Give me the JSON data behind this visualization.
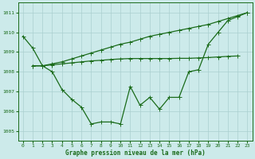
{
  "xlabel": "Graphe pression niveau de la mer (hPa)",
  "bg_color": "#cceaea",
  "grid_color": "#aacfcf",
  "line_color": "#1a6b1a",
  "x": [
    0,
    1,
    2,
    3,
    4,
    5,
    6,
    7,
    8,
    9,
    10,
    11,
    12,
    13,
    14,
    15,
    16,
    17,
    18,
    19,
    20,
    21,
    22,
    23
  ],
  "ylim": [
    1004.5,
    1011.5
  ],
  "yticks": [
    1005,
    1006,
    1007,
    1008,
    1009,
    1010,
    1011
  ],
  "series1": [
    1009.8,
    1009.2,
    1008.3,
    1008.0,
    1007.1,
    1006.6,
    1006.2,
    1005.35,
    1005.45,
    1005.45,
    1005.35,
    1007.25,
    1006.3,
    1006.7,
    1006.1,
    1006.7,
    1006.7,
    1008.0,
    1008.1,
    1009.4,
    1010.0,
    1010.6,
    1010.8,
    1011.0
  ],
  "series2_x": [
    1,
    2,
    3,
    4,
    5,
    6,
    7,
    8,
    9,
    10,
    11,
    12,
    13,
    14,
    15,
    16,
    17,
    18,
    19,
    20,
    21,
    22,
    23
  ],
  "series2_y": [
    1008.3,
    1008.3,
    1008.4,
    1008.5,
    1008.65,
    1008.8,
    1008.95,
    1009.1,
    1009.25,
    1009.4,
    1009.5,
    1009.65,
    1009.8,
    1009.9,
    1010.0,
    1010.1,
    1010.2,
    1010.3,
    1010.4,
    1010.55,
    1010.7,
    1010.85,
    1011.0
  ],
  "series3_x": [
    1,
    2,
    3,
    4,
    5,
    6,
    7,
    8,
    9,
    10,
    11,
    12,
    13,
    14,
    15,
    16,
    17,
    18,
    19,
    20,
    21,
    22
  ],
  "series3_y": [
    1008.3,
    1008.3,
    1008.35,
    1008.4,
    1008.45,
    1008.5,
    1008.55,
    1008.58,
    1008.62,
    1008.65,
    1008.67,
    1008.67,
    1008.67,
    1008.67,
    1008.67,
    1008.68,
    1008.68,
    1008.7,
    1008.72,
    1008.75,
    1008.78,
    1008.8
  ],
  "marker_size": 2.0,
  "line_width": 0.9
}
